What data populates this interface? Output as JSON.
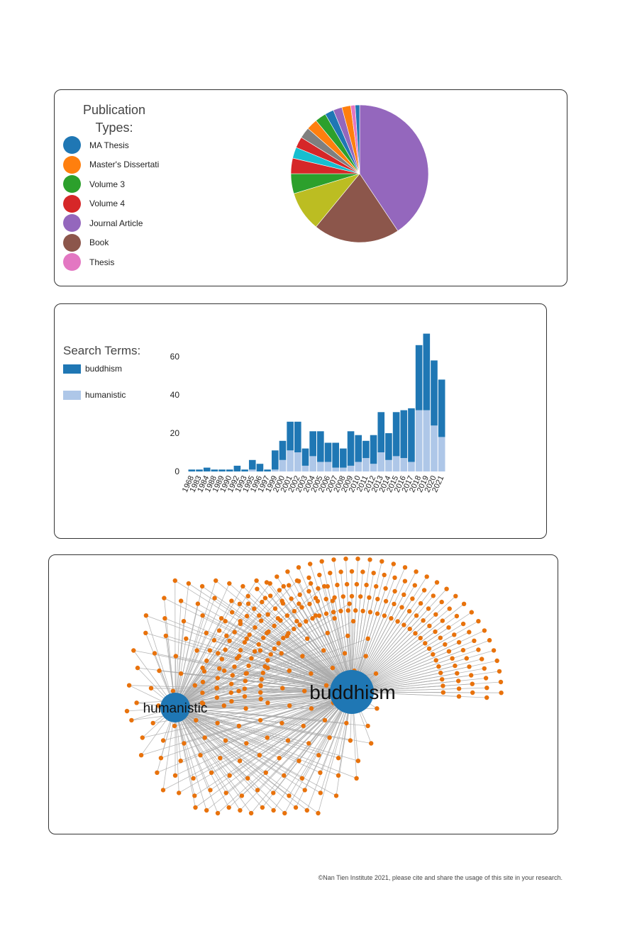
{
  "colors": {
    "tableau10": [
      "#1f77b4",
      "#ff7f0e",
      "#2ca02c",
      "#d62728",
      "#9467bd",
      "#8c564b",
      "#e377c2",
      "#7f7f7f",
      "#bcbd22",
      "#17becf"
    ],
    "stack_dark": "#1f77b4",
    "stack_light": "#aec7e8",
    "net_node_large": "#1f77b4",
    "net_node_small": "#e8720c",
    "net_link": "#aaaaaa"
  },
  "pie_panel": {
    "legend_title": "Publication Types:",
    "legend_items": [
      "MA Thesis",
      "Master's Dissertati",
      "Volume 3",
      "Volume 4",
      "Journal Article",
      "Book",
      "Thesis"
    ]
  },
  "bar_panel": {
    "legend_title": "Search Terms:",
    "legend_items": [
      "buddhism",
      "humanistic"
    ]
  },
  "network_panel": {
    "labels": {
      "hub_large": "buddhism",
      "hub_small": "humanistic"
    }
  },
  "footer": {
    "text": "©Nan Tien Institute 2021, please cite and share the usage of this site in your research."
  },
  "chart_data": [
    {
      "type": "pie",
      "title": "",
      "slices": [
        {
          "label": "Journal Article",
          "value": 78,
          "color": "#9467bd"
        },
        {
          "label": "Book",
          "value": 39,
          "color": "#8c564b"
        },
        {
          "label": "",
          "value": 18,
          "color": "#bcbd22"
        },
        {
          "label": "",
          "value": 9,
          "color": "#2ca02c"
        },
        {
          "label": "",
          "value": 7,
          "color": "#d62728"
        },
        {
          "label": "",
          "value": 5,
          "color": "#17becf"
        },
        {
          "label": "",
          "value": 5,
          "color": "#d62728"
        },
        {
          "label": "",
          "value": 5,
          "color": "#7f7f7f"
        },
        {
          "label": "",
          "value": 5,
          "color": "#ff7f0e"
        },
        {
          "label": "",
          "value": 5,
          "color": "#2ca02c"
        },
        {
          "label": "",
          "value": 4,
          "color": "#1f77b4"
        },
        {
          "label": "",
          "value": 4,
          "color": "#9467bd"
        },
        {
          "label": "",
          "value": 4,
          "color": "#ff7f0e"
        },
        {
          "label": "",
          "value": 2,
          "color": "#e377c2"
        },
        {
          "label": "",
          "value": 2,
          "color": "#1f77b4"
        }
      ]
    },
    {
      "type": "bar",
      "stacked": true,
      "title": "",
      "xlabel": "",
      "ylabel": "",
      "categories": [
        "1968",
        "1983",
        "1984",
        "1988",
        "1989",
        "1990",
        "1992",
        "1993",
        "1995",
        "1996",
        "1997",
        "1999",
        "2000",
        "2001",
        "2002",
        "2003",
        "2004",
        "2005",
        "2006",
        "2007",
        "2008",
        "2009",
        "2010",
        "2011",
        "2012",
        "2013",
        "2014",
        "2015",
        "2016",
        "2017",
        "2018",
        "2019",
        "2020",
        "2021"
      ],
      "yticks": [
        0,
        20,
        40,
        60
      ],
      "ylim": [
        0,
        72
      ],
      "series": [
        {
          "name": "humanistic",
          "values": [
            0,
            0,
            0,
            0,
            0,
            0,
            0,
            0,
            1,
            0,
            0,
            1,
            6,
            11,
            10,
            3,
            8,
            5,
            5,
            2,
            2,
            3,
            5,
            7,
            4,
            10,
            6,
            8,
            7,
            5,
            32,
            32,
            24,
            18
          ]
        },
        {
          "name": "buddhism",
          "values": [
            1,
            1,
            2,
            1,
            1,
            1,
            3,
            1,
            5,
            4,
            1,
            10,
            10,
            15,
            16,
            9,
            13,
            16,
            10,
            13,
            10,
            18,
            14,
            9,
            15,
            21,
            14,
            23,
            25,
            28,
            34,
            40,
            34,
            30
          ]
        }
      ]
    },
    {
      "type": "network",
      "hubs": [
        "buddhism",
        "humanistic"
      ],
      "hub_link": true,
      "leaf_counts": {
        "buddhism_only": 207,
        "humanistic_only": 1,
        "shared": 170
      }
    }
  ]
}
